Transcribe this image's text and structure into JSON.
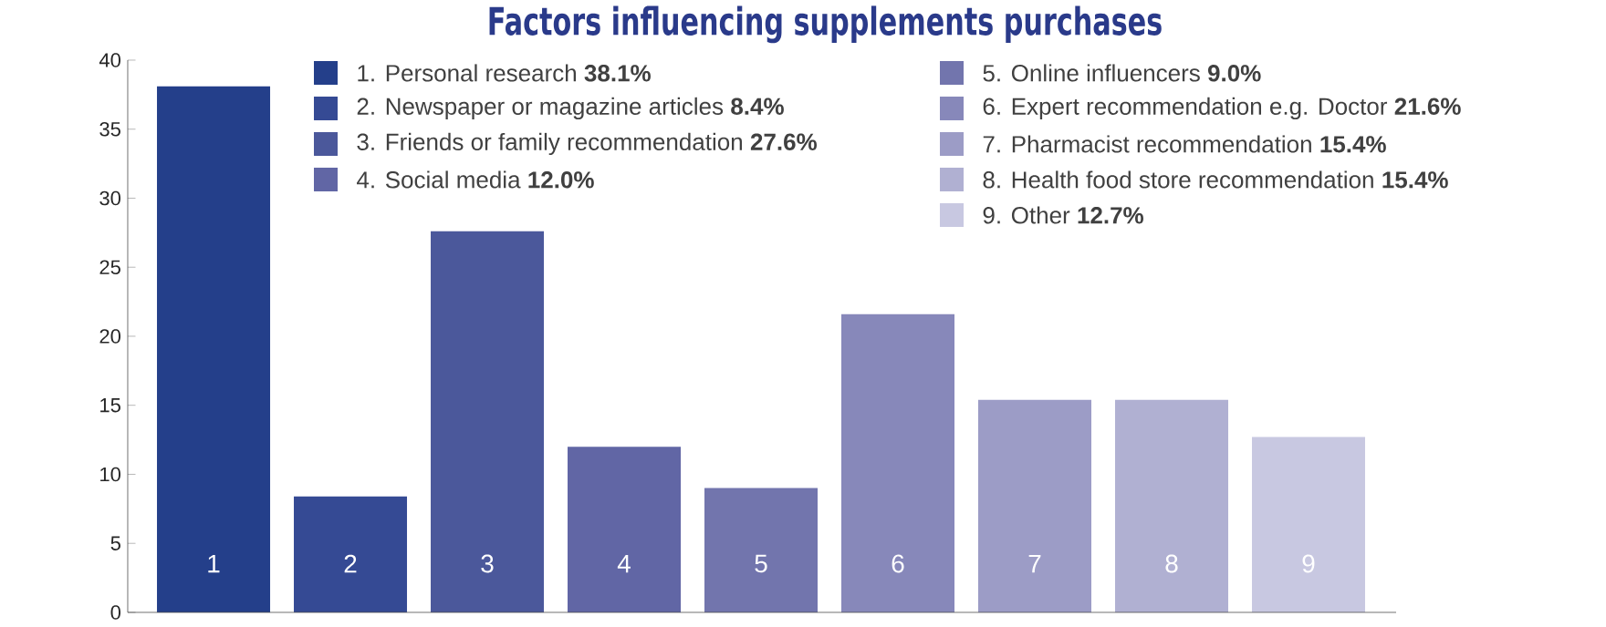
{
  "chart_data": {
    "type": "bar",
    "title": "Factors influencing supplements purchases",
    "categories": [
      "1",
      "2",
      "3",
      "4",
      "5",
      "6",
      "7",
      "8",
      "9"
    ],
    "stacked": true,
    "series": [
      {
        "name": "1. Personal research **38.1%**",
        "color": "#243f8a",
        "values": [
          38.1,
          null,
          null,
          null,
          null,
          null,
          null,
          null,
          null
        ]
      },
      {
        "name": "2. Newspaper or magazine articles **8.4%**",
        "color": "#354a94",
        "values": [
          null,
          8.4,
          null,
          null,
          null,
          null,
          null,
          null,
          null
        ]
      },
      {
        "name": "3. Friends or family recommendation **27.6%**",
        "color": "#4b589b",
        "values": [
          null,
          null,
          27.6,
          null,
          null,
          null,
          null,
          null,
          null
        ]
      },
      {
        "name": "4. Social media **12.0%**",
        "color": "#6166a5",
        "values": [
          null,
          null,
          null,
          12.0,
          null,
          null,
          null,
          null,
          null
        ]
      },
      {
        "name": "5. Online influencers **9.0%**",
        "color": "#7275ad",
        "values": [
          null,
          null,
          null,
          null,
          9.0,
          null,
          null,
          null,
          null
        ]
      },
      {
        "name": "6. Expert recommendation e.g. Doctor **21.6%**",
        "color": "#8788ba",
        "values": [
          null,
          null,
          null,
          null,
          null,
          21.6,
          null,
          null,
          null
        ]
      },
      {
        "name": "7. Pharmacist recommendation **15.4%**",
        "color": "#9c9cc6",
        "values": [
          null,
          null,
          null,
          null,
          null,
          null,
          15.4,
          null,
          null
        ]
      },
      {
        "name": "8. Health food store recommendation **15.4%**",
        "color": "#b0b0d2",
        "values": [
          null,
          null,
          null,
          null,
          null,
          null,
          null,
          15.4,
          null
        ]
      },
      {
        "name": "9. Other **12.7%**",
        "color": "#c8c8e1",
        "values": [
          null,
          null,
          null,
          null,
          null,
          null,
          null,
          null,
          12.7
        ]
      }
    ],
    "ylim": [
      0,
      40
    ],
    "yticks": [
      0,
      5,
      10,
      15,
      20,
      25,
      30,
      35,
      40
    ],
    "legend": "top"
  }
}
